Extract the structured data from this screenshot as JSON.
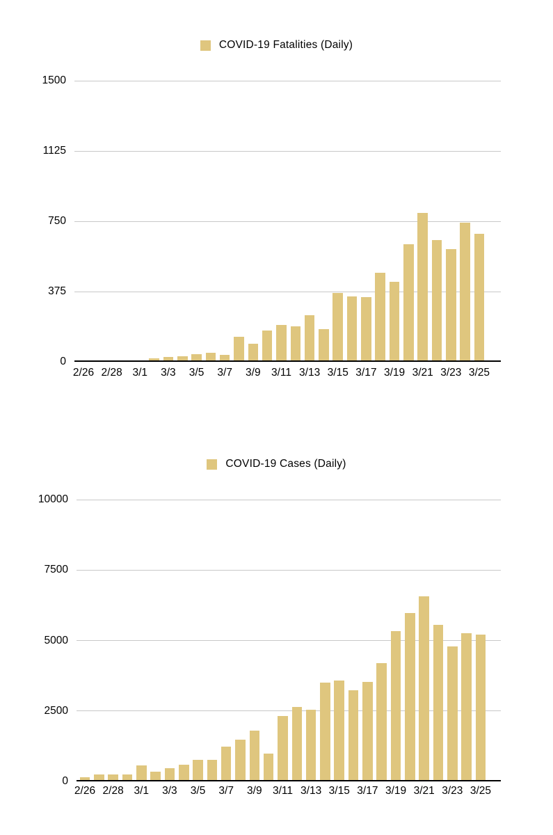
{
  "page": {
    "background": "#FFFFFF",
    "text_color": "#000000",
    "gridline_color": "#C8C8C8",
    "axis_color": "#000000",
    "bar_color": "#DFC67E"
  },
  "chart_data": [
    {
      "type": "bar",
      "title": "COVID-19 Fatalities (Daily)",
      "legend_label": "COVID-19 Fatalities (Daily)",
      "legend_position": "top-center",
      "bar_color": "#DFC67E",
      "grid": "horizontal",
      "xlabel": "",
      "ylabel": "",
      "ylim": [
        0,
        1500
      ],
      "y_ticks": [
        0,
        375,
        750,
        1125,
        1500
      ],
      "x_tick_labels": [
        "2/26",
        "2/28",
        "3/1",
        "3/3",
        "3/5",
        "3/7",
        "3/9",
        "3/11",
        "3/13",
        "3/15",
        "3/17",
        "3/19",
        "3/21",
        "3/23",
        "3/25"
      ],
      "categories": [
        "2/26",
        "2/27",
        "2/28",
        "2/29",
        "3/1",
        "3/2",
        "3/3",
        "3/4",
        "3/5",
        "3/6",
        "3/7",
        "3/8",
        "3/9",
        "3/10",
        "3/11",
        "3/12",
        "3/13",
        "3/14",
        "3/15",
        "3/16",
        "3/17",
        "3/18",
        "3/19",
        "3/20",
        "3/21",
        "3/22",
        "3/23",
        "3/24",
        "3/25"
      ],
      "values": [
        2,
        5,
        4,
        8,
        5,
        18,
        27,
        28,
        41,
        49,
        36,
        133,
        97,
        168,
        196,
        189,
        250,
        175,
        368,
        349,
        345,
        475,
        427,
        627,
        793,
        651,
        601,
        743,
        683
      ]
    },
    {
      "type": "bar",
      "title": "COVID-19 Cases (Daily)",
      "legend_label": "COVID-19 Cases (Daily)",
      "legend_position": "top-center",
      "bar_color": "#DFC67E",
      "grid": "horizontal",
      "xlabel": "",
      "ylabel": "",
      "ylim": [
        0,
        10000
      ],
      "y_ticks": [
        0,
        2500,
        5000,
        7500,
        10000
      ],
      "x_tick_labels": [
        "2/26",
        "2/28",
        "3/1",
        "3/3",
        "3/5",
        "3/7",
        "3/9",
        "3/11",
        "3/13",
        "3/15",
        "3/17",
        "3/19",
        "3/21",
        "3/23",
        "3/25"
      ],
      "categories": [
        "2/26",
        "2/27",
        "2/28",
        "2/29",
        "3/1",
        "3/2",
        "3/3",
        "3/4",
        "3/5",
        "3/6",
        "3/7",
        "3/8",
        "3/9",
        "3/10",
        "3/11",
        "3/12",
        "3/13",
        "3/14",
        "3/15",
        "3/16",
        "3/17",
        "3/18",
        "3/19",
        "3/20",
        "3/21",
        "3/22",
        "3/23",
        "3/24",
        "3/25"
      ],
      "values": [
        147,
        250,
        238,
        240,
        566,
        342,
        466,
        587,
        769,
        778,
        1247,
        1492,
        1797,
        977,
        2313,
        2651,
        2547,
        3497,
        3590,
        3233,
        3526,
        4207,
        5322,
        5986,
        6557,
        5560,
        4789,
        5249,
        5210
      ]
    }
  ]
}
